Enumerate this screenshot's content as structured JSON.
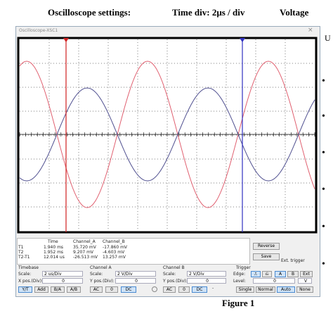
{
  "header": {
    "settings": "Oscilloscope settings:",
    "time_div": "Time div: 2µs / div",
    "voltage": "Voltage"
  },
  "window": {
    "title": "Oscilloscope-XSC1",
    "close": "×"
  },
  "side": {
    "letter": "U"
  },
  "readout": {
    "headers": [
      "Time",
      "Channel_A",
      "Channel_B"
    ],
    "rows": [
      [
        "T1",
        "1.940 ms",
        "35.720 mV",
        "-17.860 mV"
      ],
      [
        "T2",
        "1.952 ms",
        "9.207 mV",
        "-4.603 mV"
      ],
      [
        "T2-T1",
        "12.014 us",
        "-26.513 mV",
        "13.257 mV"
      ]
    ],
    "reverse": "Reverse",
    "save": "Save",
    "ext_trigger": "Ext. trigger"
  },
  "timebase": {
    "title": "Timebase",
    "scale_label": "Scale:",
    "scale": "2 us/Div",
    "xpos_label": "X pos.(Div):",
    "xpos": "0",
    "buttons": [
      "Y/T",
      "Add",
      "B/A",
      "A/B"
    ]
  },
  "channel_a": {
    "title": "Channel A",
    "scale_label": "Scale:",
    "scale": "2 V/Div",
    "ypos_label": "Y pos.(Div):",
    "ypos": "0",
    "buttons": [
      "AC",
      "0",
      "DC"
    ]
  },
  "channel_b": {
    "title": "Channel B",
    "scale_label": "Scale:",
    "scale": "2 V/Div",
    "ypos_label": "Y pos.(Div):",
    "ypos": "0",
    "buttons": [
      "AC",
      "0",
      "DC"
    ],
    "minus": "-"
  },
  "trigger": {
    "title": "Trigger",
    "edge_label": "Edge:",
    "edge_buttons": [
      "A",
      "B",
      "Ext"
    ],
    "level_label": "Level:",
    "level": "0",
    "level_unit": "V",
    "modes": [
      "Single",
      "Normal",
      "Auto",
      "None"
    ]
  },
  "caption": "Figure 1"
}
